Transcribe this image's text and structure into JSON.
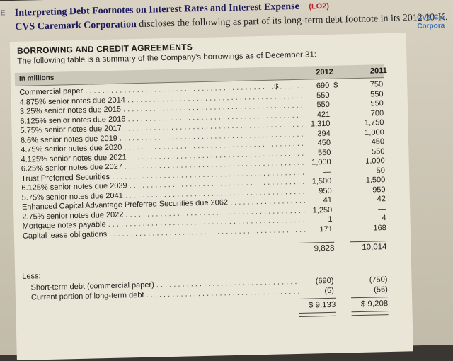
{
  "exercise": {
    "number": "E",
    "title": "Interpreting Debt Footnotes on Interest Rates and Interest Expense",
    "objective": "(LO2)",
    "company": "CVS Caremark Corporation",
    "intro_rest": "discloses the following as part of its long-term debt footnote in its 2012 10-K.",
    "margin_note": "CVS Car Corpora"
  },
  "note": {
    "heading": "BORROWING AND CREDIT AGREEMENTS",
    "intro": "The following table is a summary of the Company's borrowings as of December 31:",
    "units_label": "In millions",
    "col_2012": "2012",
    "col_2011": "2011"
  },
  "rows": [
    {
      "label": "Commercial paper",
      "v2012": "690",
      "v2011": "750"
    },
    {
      "label": "4.875% senior notes due 2014",
      "v2012": "550",
      "v2011": "550"
    },
    {
      "label": "3.25% senior notes due 2015",
      "v2012": "550",
      "v2011": "550"
    },
    {
      "label": "6.125% senior notes due 2016",
      "v2012": "421",
      "v2011": "700"
    },
    {
      "label": "5.75% senior notes due 2017",
      "v2012": "1,310",
      "v2011": "1,750"
    },
    {
      "label": "6.6% senior notes due 2019",
      "v2012": "394",
      "v2011": "1,000"
    },
    {
      "label": "4.75% senior notes due 2020",
      "v2012": "450",
      "v2011": "450"
    },
    {
      "label": "4.125% senior notes due 2021",
      "v2012": "550",
      "v2011": "550"
    },
    {
      "label": "6.25% senior notes due 2027",
      "v2012": "1,000",
      "v2011": "1,000"
    },
    {
      "label": "Trust Preferred Securities",
      "v2012": "—",
      "v2011": "50"
    },
    {
      "label": "6.125% senior notes due 2039",
      "v2012": "1,500",
      "v2011": "1,500"
    },
    {
      "label": "5.75% senior notes due 2041",
      "v2012": "950",
      "v2011": "950"
    },
    {
      "label": "Enhanced Capital Advantage Preferred Securities due 2062",
      "v2012": "41",
      "v2011": "42"
    },
    {
      "label": "2.75% senior notes due 2022",
      "v2012": "1,250",
      "v2011": "—"
    },
    {
      "label": "Mortgage notes payable",
      "v2012": "1",
      "v2011": "4"
    },
    {
      "label": "Capital lease obligations",
      "v2012": "171",
      "v2011": "168"
    }
  ],
  "currency": "$",
  "subtotal": {
    "v2012": "9,828",
    "v2011": "10,014"
  },
  "less": {
    "label": "Less:",
    "items": [
      {
        "label": "Short-term debt (commercial paper)",
        "v2012": "(690)",
        "v2011": "(750)"
      },
      {
        "label": "Current portion of long-term debt",
        "v2012": "(5)",
        "v2011": "(56)"
      }
    ]
  },
  "total": {
    "v2012": "$ 9,133",
    "v2011": "$ 9,208"
  }
}
